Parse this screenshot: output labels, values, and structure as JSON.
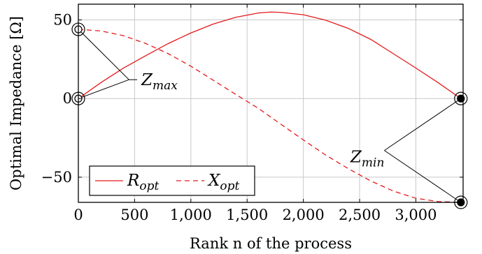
{
  "chart_data": {
    "type": "line",
    "xlabel": "Rank n of the process",
    "ylabel": "Optimal Impedance [Ω]",
    "xlim": [
      0,
      3420
    ],
    "ylim": [
      -66,
      60
    ],
    "x_ticks": [
      0,
      500,
      1000,
      1500,
      2000,
      2500,
      3000
    ],
    "x_tick_labels": [
      "0",
      "500",
      "1,000",
      "1,500",
      "2,000",
      "2,500",
      "3,000"
    ],
    "y_ticks": [
      -50,
      0,
      50
    ],
    "y_tick_labels": [
      "−50",
      "0",
      "50"
    ],
    "grid": true,
    "legend_placement": "bottom-left",
    "series": [
      {
        "name": "R_opt",
        "legend_base": "R",
        "legend_sub": "opt",
        "color": "#e41a1c",
        "style": "solid",
        "x": [
          0,
          200,
          400,
          600,
          800,
          1000,
          1200,
          1400,
          1600,
          1710,
          1800,
          2000,
          2200,
          2400,
          2600,
          2800,
          3000,
          3200,
          3400
        ],
        "y": [
          0,
          10.1,
          19.3,
          27.3,
          35.0,
          41.7,
          47.4,
          51.7,
          54.4,
          55,
          54.8,
          53.3,
          49.8,
          44.6,
          37.6,
          28.5,
          19.4,
          10.0,
          0
        ]
      },
      {
        "name": "X_opt",
        "legend_base": "X",
        "legend_sub": "opt",
        "color": "#e41a1c",
        "style": "dashed",
        "x": [
          0,
          200,
          400,
          600,
          800,
          1000,
          1200,
          1400,
          1600,
          1800,
          2000,
          2200,
          2400,
          2600,
          2800,
          3000,
          3200,
          3400
        ],
        "y": [
          44,
          43,
          40,
          35,
          28.5,
          20.6,
          11.6,
          2.6,
          -6.2,
          -16.3,
          -26.3,
          -36.0,
          -44.6,
          -52.4,
          -58.8,
          -63.4,
          -65.5,
          -66
        ]
      }
    ],
    "annotations": [
      {
        "label": "Z_max",
        "label_base": "Z",
        "label_sub": "max",
        "label_at": [
          560,
          12
        ],
        "label_anchor": "start",
        "arrow_from": [
          450,
          12
        ],
        "points": [
          [
            0,
            44
          ],
          [
            0,
            0
          ]
        ],
        "marker_filled": false
      },
      {
        "label": "Z_min",
        "label_base": "Z",
        "label_sub": "min",
        "label_at": [
          2720,
          -37
        ],
        "label_anchor": "end",
        "arrow_from": [
          2720,
          -33
        ],
        "points": [
          [
            3400,
            0
          ],
          [
            3400,
            -66
          ]
        ],
        "marker_filled": true
      }
    ]
  }
}
